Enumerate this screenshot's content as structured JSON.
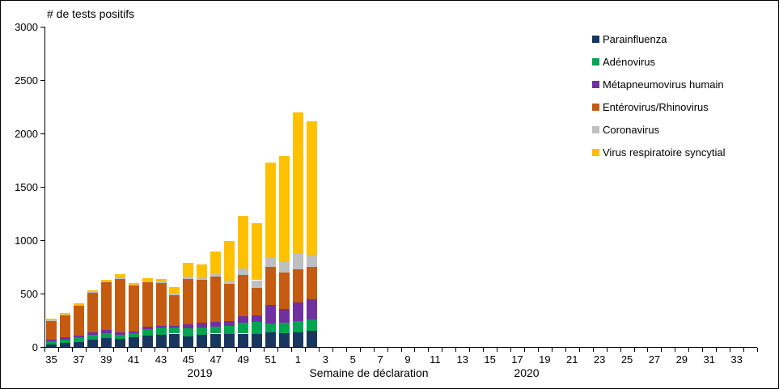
{
  "title": "# de tests positifs",
  "axis": {
    "y_ticks": [
      0,
      500,
      1000,
      1500,
      2000,
      2500,
      3000
    ],
    "y_max": 3000,
    "x_title": "Semaine de déclaration",
    "years": [
      "2019",
      "2020"
    ]
  },
  "legend": {
    "items": [
      {
        "label": "Parainfluenza",
        "color": "#17375E"
      },
      {
        "label": "Adénovirus",
        "color": "#00A550"
      },
      {
        "label": "Métapneumovirus humain",
        "color": "#7030A0"
      },
      {
        "label": "Entérovirus/Rhinovirus",
        "color": "#C55A11"
      },
      {
        "label": "Coronavirus",
        "color": "#BFBFBF"
      },
      {
        "label": "Virus respiratoire syncytial",
        "color": "#FFC000"
      }
    ]
  },
  "chart_data": {
    "type": "bar",
    "stacked": true,
    "title": "# de tests positifs",
    "xlabel": "Semaine de déclaration",
    "ylabel": "",
    "ylim": [
      0,
      3000
    ],
    "grid": false,
    "legend_position": "right",
    "categories": [
      "35",
      "36",
      "37",
      "38",
      "39",
      "40",
      "41",
      "42",
      "43",
      "44",
      "45",
      "46",
      "47",
      "48",
      "49",
      "50",
      "51",
      "52",
      "1",
      "2",
      "3",
      "4",
      "5",
      "6",
      "7",
      "8",
      "9",
      "10",
      "11",
      "12",
      "13",
      "14",
      "15",
      "16",
      "17",
      "18",
      "19",
      "20",
      "21",
      "22",
      "23",
      "24",
      "25",
      "26",
      "27",
      "28",
      "29",
      "30",
      "31",
      "32",
      "33",
      "34"
    ],
    "category_years": {
      "2019": [
        "35",
        "52"
      ],
      "2020": [
        "1",
        "34"
      ]
    },
    "labeled_ticks": [
      "35",
      "37",
      "39",
      "41",
      "43",
      "45",
      "47",
      "49",
      "51",
      "1",
      "3",
      "5",
      "7",
      "9",
      "11",
      "13",
      "15",
      "17",
      "19",
      "21",
      "23",
      "25",
      "27",
      "29",
      "31",
      "33"
    ],
    "series": [
      {
        "name": "Parainfluenza",
        "color": "#17375E",
        "values": [
          25,
          35,
          45,
          65,
          80,
          75,
          90,
          105,
          115,
          125,
          100,
          115,
          125,
          120,
          125,
          120,
          140,
          130,
          140,
          150
        ]
      },
      {
        "name": "Adénovirus",
        "color": "#00A550",
        "values": [
          30,
          30,
          45,
          50,
          50,
          40,
          40,
          65,
          65,
          55,
          75,
          70,
          65,
          75,
          100,
          115,
          80,
          100,
          100,
          110
        ]
      },
      {
        "name": "Métapneumovirus humain",
        "color": "#7030A0",
        "values": [
          10,
          25,
          15,
          20,
          30,
          25,
          15,
          20,
          20,
          20,
          35,
          40,
          45,
          50,
          65,
          60,
          175,
          125,
          175,
          190
        ]
      },
      {
        "name": "Entérovirus/Rhinovirus",
        "color": "#C55A11",
        "values": [
          180,
          205,
          285,
          375,
          450,
          495,
          430,
          415,
          400,
          285,
          430,
          405,
          425,
          345,
          385,
          255,
          355,
          345,
          315,
          300
        ]
      },
      {
        "name": "Coronavirus",
        "color": "#BFBFBF",
        "values": [
          5,
          5,
          5,
          5,
          5,
          15,
          10,
          10,
          10,
          15,
          20,
          25,
          20,
          30,
          60,
          75,
          85,
          100,
          140,
          115
        ]
      },
      {
        "name": "Virus respiratoire syncytial",
        "color": "#FFC000",
        "values": [
          15,
          15,
          15,
          15,
          15,
          30,
          15,
          30,
          25,
          60,
          125,
          115,
          215,
          370,
          490,
          535,
          890,
          990,
          1330,
          1245
        ]
      }
    ],
    "totals": [
      265,
      315,
      410,
      530,
      630,
      680,
      600,
      645,
      635,
      560,
      785,
      770,
      895,
      990,
      1225,
      1160,
      1725,
      1790,
      2200,
      2110
    ]
  }
}
